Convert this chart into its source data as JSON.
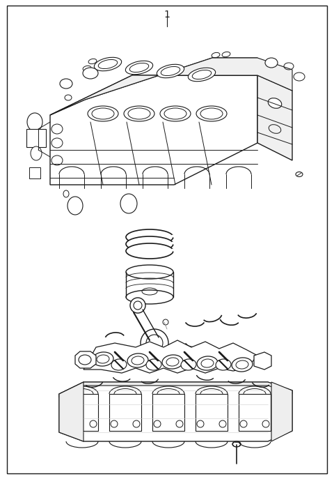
{
  "bg_color": "#ffffff",
  "border_color": "#000000",
  "line_color": "#1a1a1a",
  "fig_width": 4.8,
  "fig_height": 6.87,
  "dpi": 100,
  "label_number": "1",
  "label_fontsize": 10
}
